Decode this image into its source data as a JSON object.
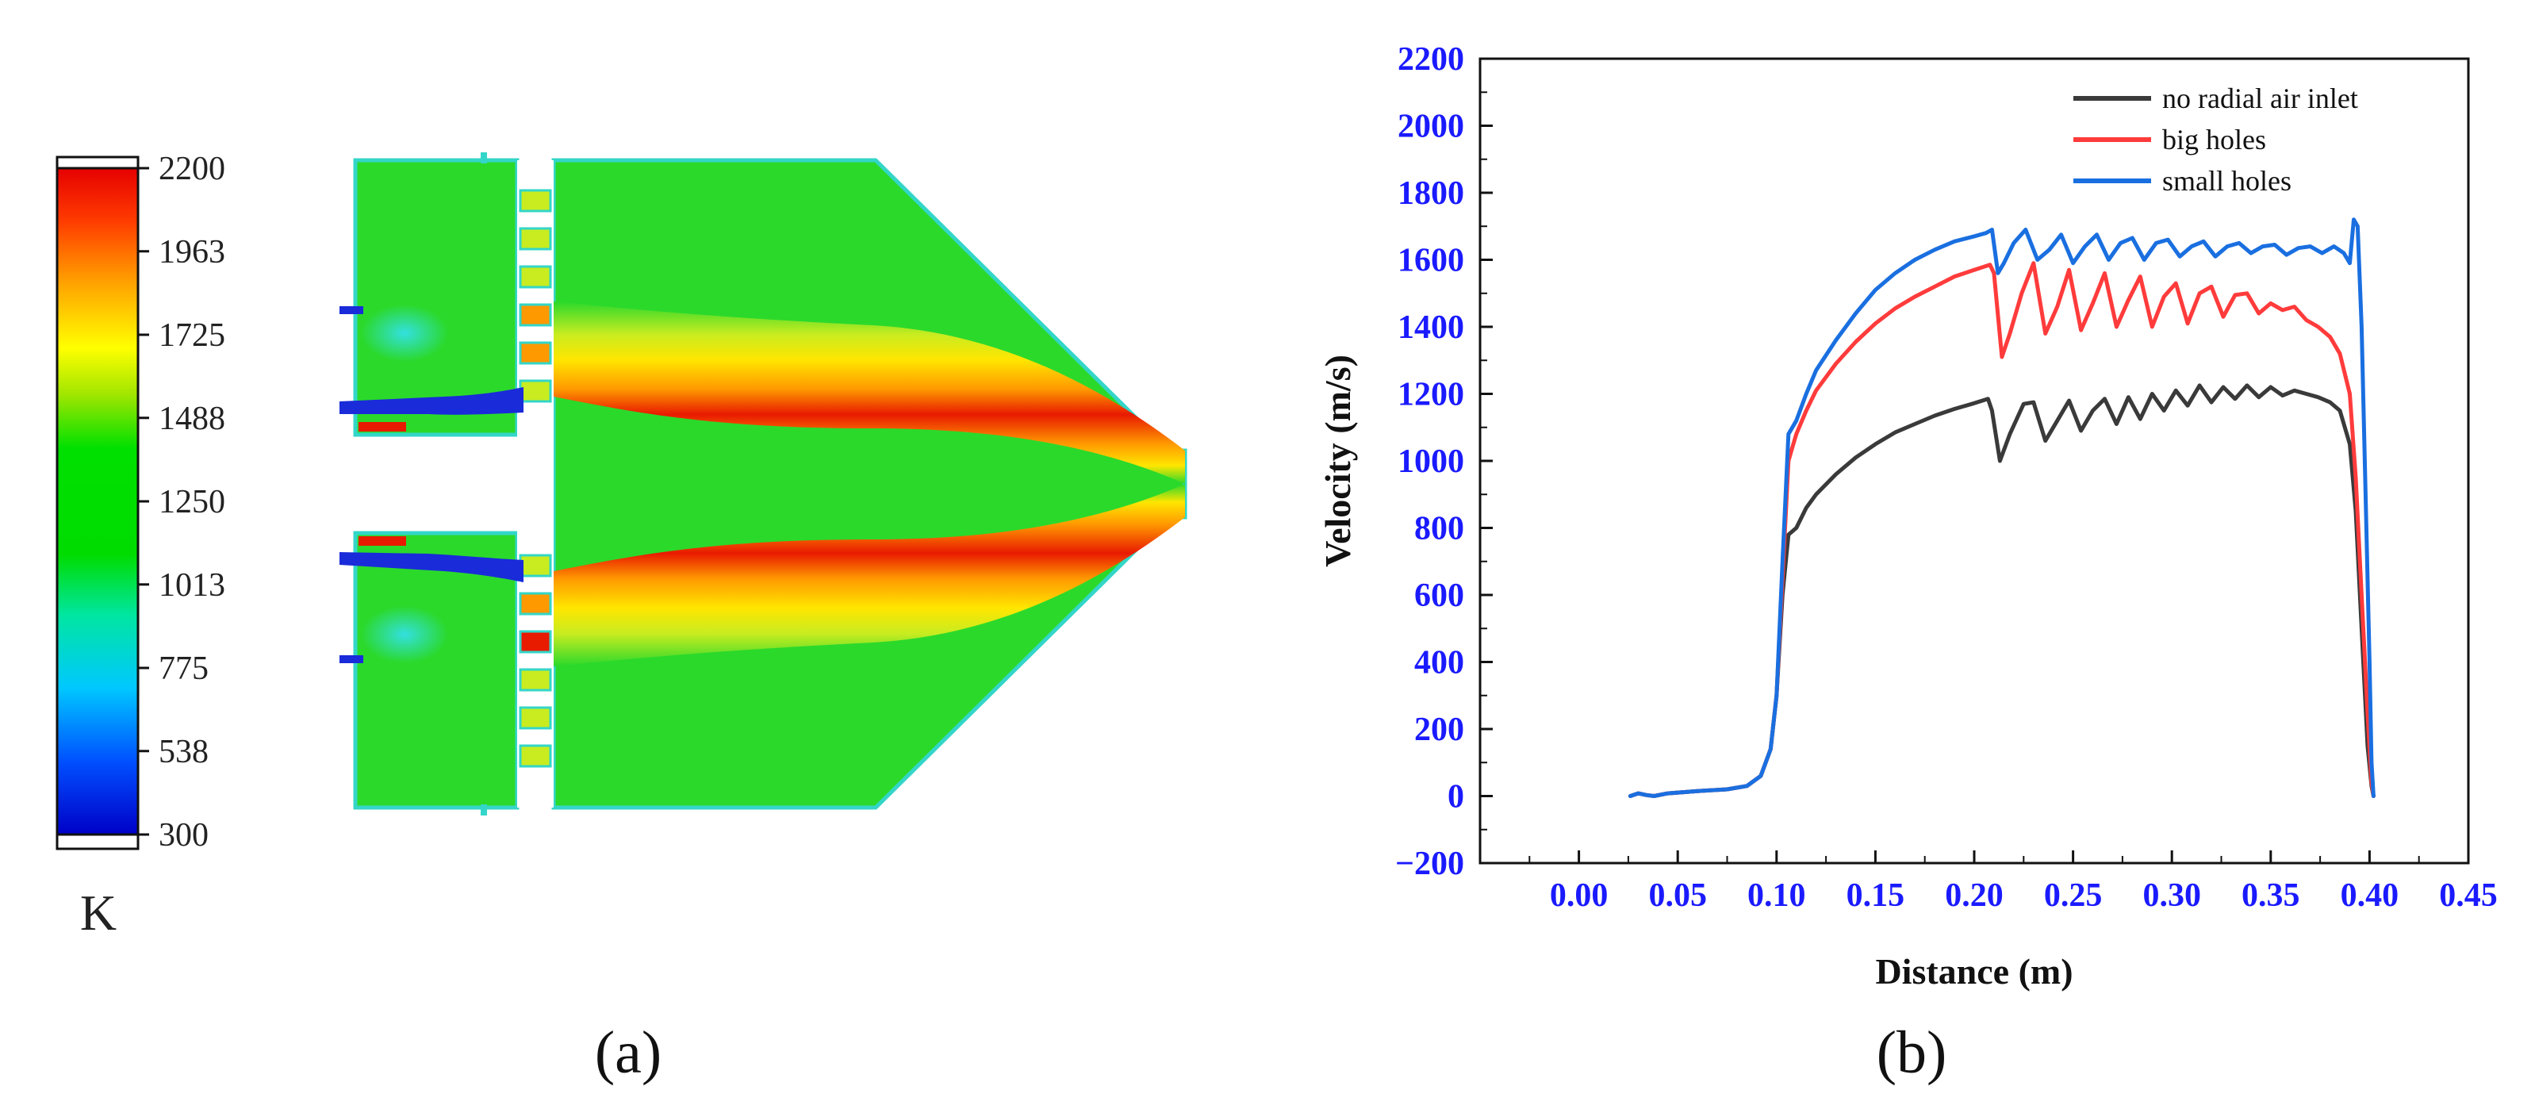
{
  "panel_a": {
    "label": "(a)",
    "colorbar": {
      "unit": "K",
      "ticks": [
        2200,
        1963,
        1725,
        1488,
        1250,
        1013,
        775,
        538,
        300
      ],
      "range": [
        300,
        2200
      ],
      "colors": [
        "#0000c8",
        "#0050ff",
        "#00c8ff",
        "#00e6a0",
        "#00dc00",
        "#a0e600",
        "#ffff00",
        "#ffa000",
        "#ff3c00",
        "#e60000"
      ]
    },
    "field_colors": {
      "bulk": "#2bd92b",
      "warm": "#ffe600",
      "hot": "#ff9900",
      "peak": "#e81a00",
      "cold": "#1a2bd9",
      "cool": "#33e0e0",
      "wall": "#33d6c8"
    }
  },
  "panel_b": {
    "label": "(b)"
  },
  "chart_data": {
    "type": "line",
    "title": "",
    "xlabel": "Distance (m)",
    "ylabel": "Velocity (m/s)",
    "xlim": [
      -0.05,
      0.45
    ],
    "ylim": [
      -200,
      2200
    ],
    "xticks": [
      "0.00",
      "0.05",
      "0.10",
      "0.15",
      "0.20",
      "0.25",
      "0.30",
      "0.35",
      "0.40",
      "0.45"
    ],
    "xtick_values": [
      0.0,
      0.05,
      0.1,
      0.15,
      0.2,
      0.25,
      0.3,
      0.35,
      0.4,
      0.45
    ],
    "yticks": [
      "-200",
      "0",
      "200",
      "400",
      "600",
      "800",
      "1000",
      "1200",
      "1400",
      "1600",
      "1800",
      "2000",
      "2200"
    ],
    "ytick_values": [
      -200,
      0,
      200,
      400,
      600,
      800,
      1000,
      1200,
      1400,
      1600,
      1800,
      2000,
      2200
    ],
    "legend_position": "top-right",
    "series": [
      {
        "name": "no radial air inlet",
        "color": "#3a3a3a",
        "x": [
          0.026,
          0.03,
          0.034,
          0.038,
          0.045,
          0.06,
          0.075,
          0.085,
          0.092,
          0.097,
          0.1,
          0.103,
          0.106,
          0.11,
          0.115,
          0.12,
          0.13,
          0.14,
          0.15,
          0.16,
          0.17,
          0.18,
          0.19,
          0.2,
          0.207,
          0.209,
          0.213,
          0.218,
          0.225,
          0.23,
          0.236,
          0.242,
          0.248,
          0.254,
          0.26,
          0.266,
          0.272,
          0.278,
          0.284,
          0.29,
          0.296,
          0.302,
          0.308,
          0.314,
          0.32,
          0.326,
          0.332,
          0.338,
          0.344,
          0.35,
          0.356,
          0.362,
          0.368,
          0.374,
          0.38,
          0.385,
          0.39,
          0.393,
          0.396,
          0.399,
          0.401,
          0.402
        ],
        "y": [
          0,
          8,
          3,
          0,
          8,
          15,
          20,
          30,
          60,
          140,
          300,
          600,
          780,
          800,
          860,
          900,
          960,
          1010,
          1050,
          1085,
          1110,
          1135,
          1155,
          1172,
          1185,
          1150,
          1000,
          1080,
          1170,
          1175,
          1060,
          1120,
          1180,
          1090,
          1150,
          1185,
          1110,
          1190,
          1125,
          1200,
          1150,
          1210,
          1165,
          1225,
          1175,
          1220,
          1185,
          1225,
          1190,
          1220,
          1195,
          1210,
          1200,
          1190,
          1175,
          1150,
          1050,
          850,
          500,
          150,
          30,
          0
        ]
      },
      {
        "name": "big holes",
        "color": "#ff3b3b",
        "x": [
          0.026,
          0.03,
          0.034,
          0.038,
          0.045,
          0.06,
          0.075,
          0.085,
          0.092,
          0.097,
          0.1,
          0.103,
          0.106,
          0.108,
          0.11,
          0.115,
          0.12,
          0.13,
          0.14,
          0.15,
          0.16,
          0.17,
          0.18,
          0.19,
          0.2,
          0.208,
          0.21,
          0.214,
          0.218,
          0.224,
          0.23,
          0.236,
          0.242,
          0.248,
          0.254,
          0.26,
          0.266,
          0.272,
          0.278,
          0.284,
          0.29,
          0.296,
          0.302,
          0.308,
          0.314,
          0.32,
          0.326,
          0.332,
          0.338,
          0.344,
          0.35,
          0.356,
          0.362,
          0.368,
          0.374,
          0.38,
          0.385,
          0.39,
          0.393,
          0.396,
          0.399,
          0.401,
          0.402
        ],
        "y": [
          0,
          8,
          3,
          0,
          8,
          15,
          20,
          30,
          60,
          140,
          300,
          650,
          1000,
          1040,
          1080,
          1150,
          1210,
          1290,
          1355,
          1410,
          1455,
          1490,
          1520,
          1550,
          1570,
          1585,
          1560,
          1310,
          1380,
          1500,
          1590,
          1380,
          1460,
          1570,
          1390,
          1470,
          1560,
          1400,
          1480,
          1550,
          1400,
          1490,
          1530,
          1410,
          1500,
          1520,
          1430,
          1495,
          1500,
          1440,
          1470,
          1450,
          1460,
          1420,
          1400,
          1370,
          1320,
          1200,
          950,
          600,
          250,
          40,
          0
        ]
      },
      {
        "name": "small holes",
        "color": "#1a6fe0",
        "x": [
          0.026,
          0.03,
          0.034,
          0.038,
          0.045,
          0.06,
          0.075,
          0.085,
          0.092,
          0.097,
          0.1,
          0.103,
          0.106,
          0.11,
          0.115,
          0.12,
          0.13,
          0.14,
          0.15,
          0.16,
          0.17,
          0.18,
          0.19,
          0.2,
          0.206,
          0.209,
          0.212,
          0.215,
          0.22,
          0.226,
          0.232,
          0.238,
          0.244,
          0.25,
          0.256,
          0.262,
          0.268,
          0.274,
          0.28,
          0.286,
          0.292,
          0.298,
          0.304,
          0.31,
          0.316,
          0.322,
          0.328,
          0.334,
          0.34,
          0.346,
          0.352,
          0.358,
          0.364,
          0.37,
          0.376,
          0.382,
          0.387,
          0.39,
          0.392,
          0.394,
          0.396,
          0.398,
          0.4,
          0.401,
          0.402
        ],
        "y": [
          0,
          8,
          3,
          0,
          8,
          15,
          20,
          30,
          60,
          140,
          300,
          700,
          1080,
          1120,
          1200,
          1270,
          1360,
          1440,
          1510,
          1560,
          1600,
          1630,
          1655,
          1670,
          1680,
          1690,
          1560,
          1590,
          1650,
          1690,
          1600,
          1630,
          1675,
          1590,
          1640,
          1675,
          1600,
          1650,
          1665,
          1600,
          1650,
          1660,
          1610,
          1640,
          1655,
          1610,
          1640,
          1650,
          1620,
          1640,
          1645,
          1615,
          1635,
          1640,
          1620,
          1640,
          1620,
          1590,
          1720,
          1700,
          1400,
          900,
          400,
          100,
          0
        ]
      }
    ]
  }
}
